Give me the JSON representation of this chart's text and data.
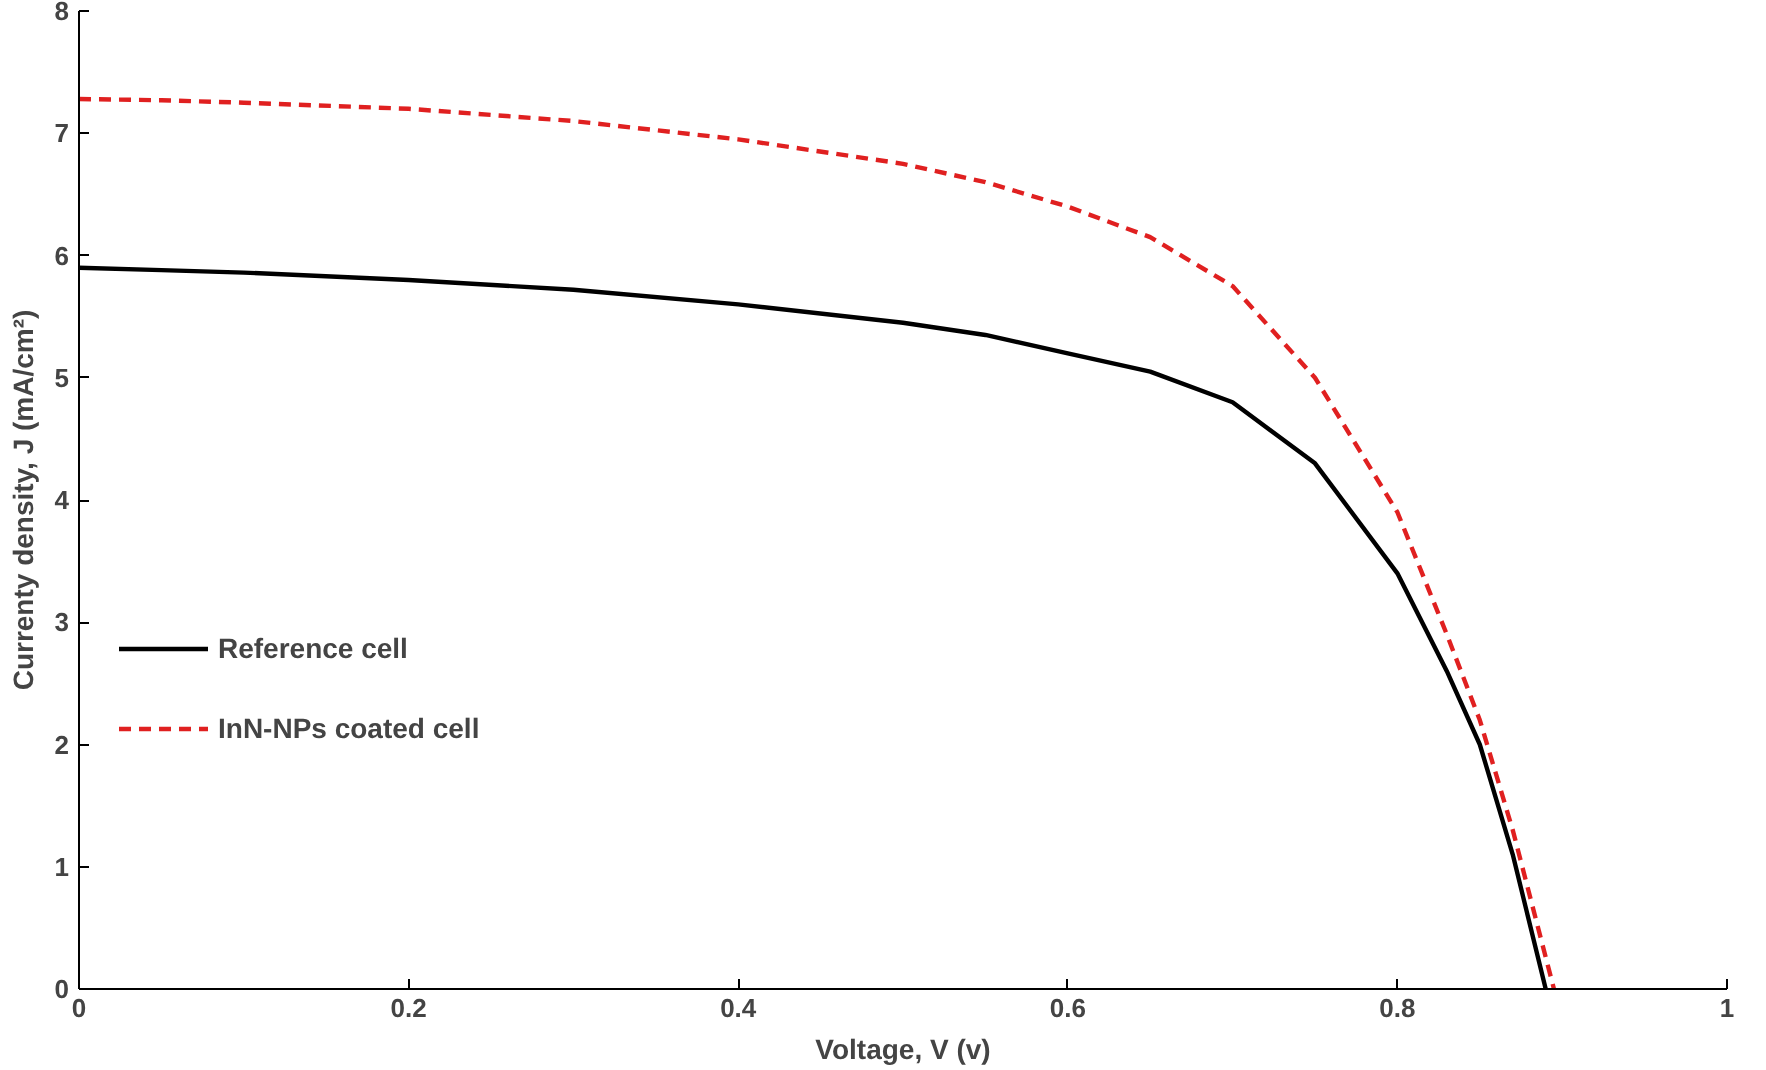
{
  "chart_data": {
    "type": "line",
    "xlabel": "Voltage, V (v)",
    "ylabel": "Currenty density, J (mA/cm²)",
    "xlim": [
      0,
      1
    ],
    "xticks": [
      0,
      0.2,
      0.4,
      0.6,
      0.8,
      1
    ],
    "ylim": [
      0,
      8
    ],
    "yticks": [
      0,
      1,
      2,
      3,
      4,
      5,
      6,
      7,
      8
    ],
    "grid": false,
    "legend": "left",
    "series": [
      {
        "name": "Reference cell",
        "color": "#000000",
        "line_style": "solid",
        "x": [
          0,
          0.05,
          0.1,
          0.2,
          0.3,
          0.4,
          0.5,
          0.55,
          0.6,
          0.65,
          0.7,
          0.75,
          0.8,
          0.83,
          0.85,
          0.87,
          0.89
        ],
        "values": [
          5.9,
          5.88,
          5.86,
          5.8,
          5.72,
          5.6,
          5.45,
          5.35,
          5.2,
          5.05,
          4.8,
          4.3,
          3.4,
          2.6,
          2.0,
          1.1,
          0
        ]
      },
      {
        "name": "InN-NPs coated cell",
        "color": "#e02020",
        "line_style": "dashed",
        "x": [
          0,
          0.05,
          0.1,
          0.2,
          0.3,
          0.4,
          0.5,
          0.55,
          0.6,
          0.65,
          0.7,
          0.75,
          0.8,
          0.83,
          0.85,
          0.87,
          0.895
        ],
        "values": [
          7.28,
          7.27,
          7.25,
          7.2,
          7.1,
          6.95,
          6.75,
          6.6,
          6.4,
          6.15,
          5.75,
          5.0,
          3.9,
          2.9,
          2.2,
          1.3,
          0
        ]
      }
    ]
  }
}
